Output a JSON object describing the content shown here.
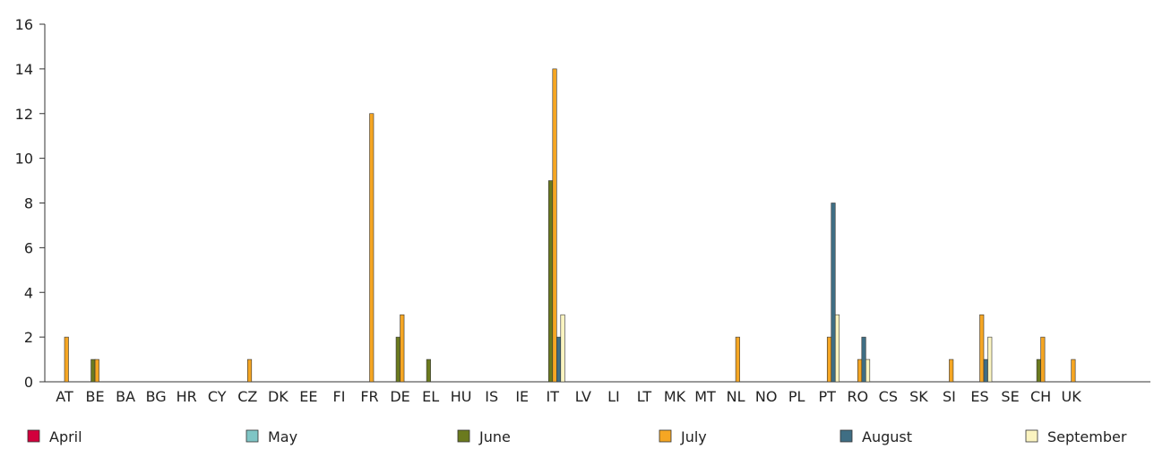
{
  "chart_data": {
    "type": "bar",
    "title": "",
    "xlabel": "",
    "ylabel": "",
    "ylim": [
      0,
      16
    ],
    "yticks": [
      0,
      2,
      4,
      6,
      8,
      10,
      12,
      14,
      16
    ],
    "grid": false,
    "legend_position": "bottom",
    "categories": [
      "AT",
      "BE",
      "BA",
      "BG",
      "HR",
      "CY",
      "CZ",
      "DK",
      "EE",
      "FI",
      "FR",
      "DE",
      "EL",
      "HU",
      "IS",
      "IE",
      "IT",
      "LV",
      "LI",
      "LT",
      "MK",
      "MT",
      "NL",
      "NO",
      "PL",
      "PT",
      "RO",
      "CS",
      "SK",
      "SI",
      "ES",
      "SE",
      "CH",
      "UK"
    ],
    "series": [
      {
        "name": "April",
        "color": "#d2003c",
        "values": [
          0,
          0,
          0,
          0,
          0,
          0,
          0,
          0,
          0,
          0,
          0,
          0,
          0,
          0,
          0,
          0,
          0,
          0,
          0,
          0,
          0,
          0,
          0,
          0,
          0,
          0,
          0,
          0,
          0,
          0,
          0,
          0,
          0,
          0
        ]
      },
      {
        "name": "May",
        "color": "#7fc5c5",
        "values": [
          0,
          0,
          0,
          0,
          0,
          0,
          0,
          0,
          0,
          0,
          0,
          0,
          0,
          0,
          0,
          0,
          0,
          0,
          0,
          0,
          0,
          0,
          0,
          0,
          0,
          0,
          0,
          0,
          0,
          0,
          0,
          0,
          0,
          0
        ]
      },
      {
        "name": "June",
        "color": "#6b7a1e",
        "values": [
          0,
          1,
          0,
          0,
          0,
          0,
          0,
          0,
          0,
          0,
          0,
          2,
          1,
          0,
          0,
          0,
          9,
          0,
          0,
          0,
          0,
          0,
          0,
          0,
          0,
          0,
          0,
          0,
          0,
          0,
          0,
          0,
          1,
          0
        ]
      },
      {
        "name": "July",
        "color": "#f5a623",
        "values": [
          2,
          1,
          0,
          0,
          0,
          0,
          1,
          0,
          0,
          0,
          12,
          3,
          0,
          0,
          0,
          0,
          14,
          0,
          0,
          0,
          0,
          0,
          2,
          0,
          0,
          2,
          1,
          0,
          0,
          1,
          3,
          0,
          2,
          1
        ]
      },
      {
        "name": "August",
        "color": "#3f6e84",
        "values": [
          0,
          0,
          0,
          0,
          0,
          0,
          0,
          0,
          0,
          0,
          0,
          0,
          0,
          0,
          0,
          0,
          2,
          0,
          0,
          0,
          0,
          0,
          0,
          0,
          0,
          8,
          2,
          0,
          0,
          0,
          1,
          0,
          0,
          0
        ]
      },
      {
        "name": "September",
        "color": "#fbf4c0",
        "values": [
          0,
          0,
          0,
          0,
          0,
          0,
          0,
          0,
          0,
          0,
          0,
          0,
          0,
          0,
          0,
          0,
          3,
          0,
          0,
          0,
          0,
          0,
          0,
          0,
          0,
          3,
          1,
          0,
          0,
          0,
          2,
          0,
          0,
          0
        ]
      }
    ]
  }
}
